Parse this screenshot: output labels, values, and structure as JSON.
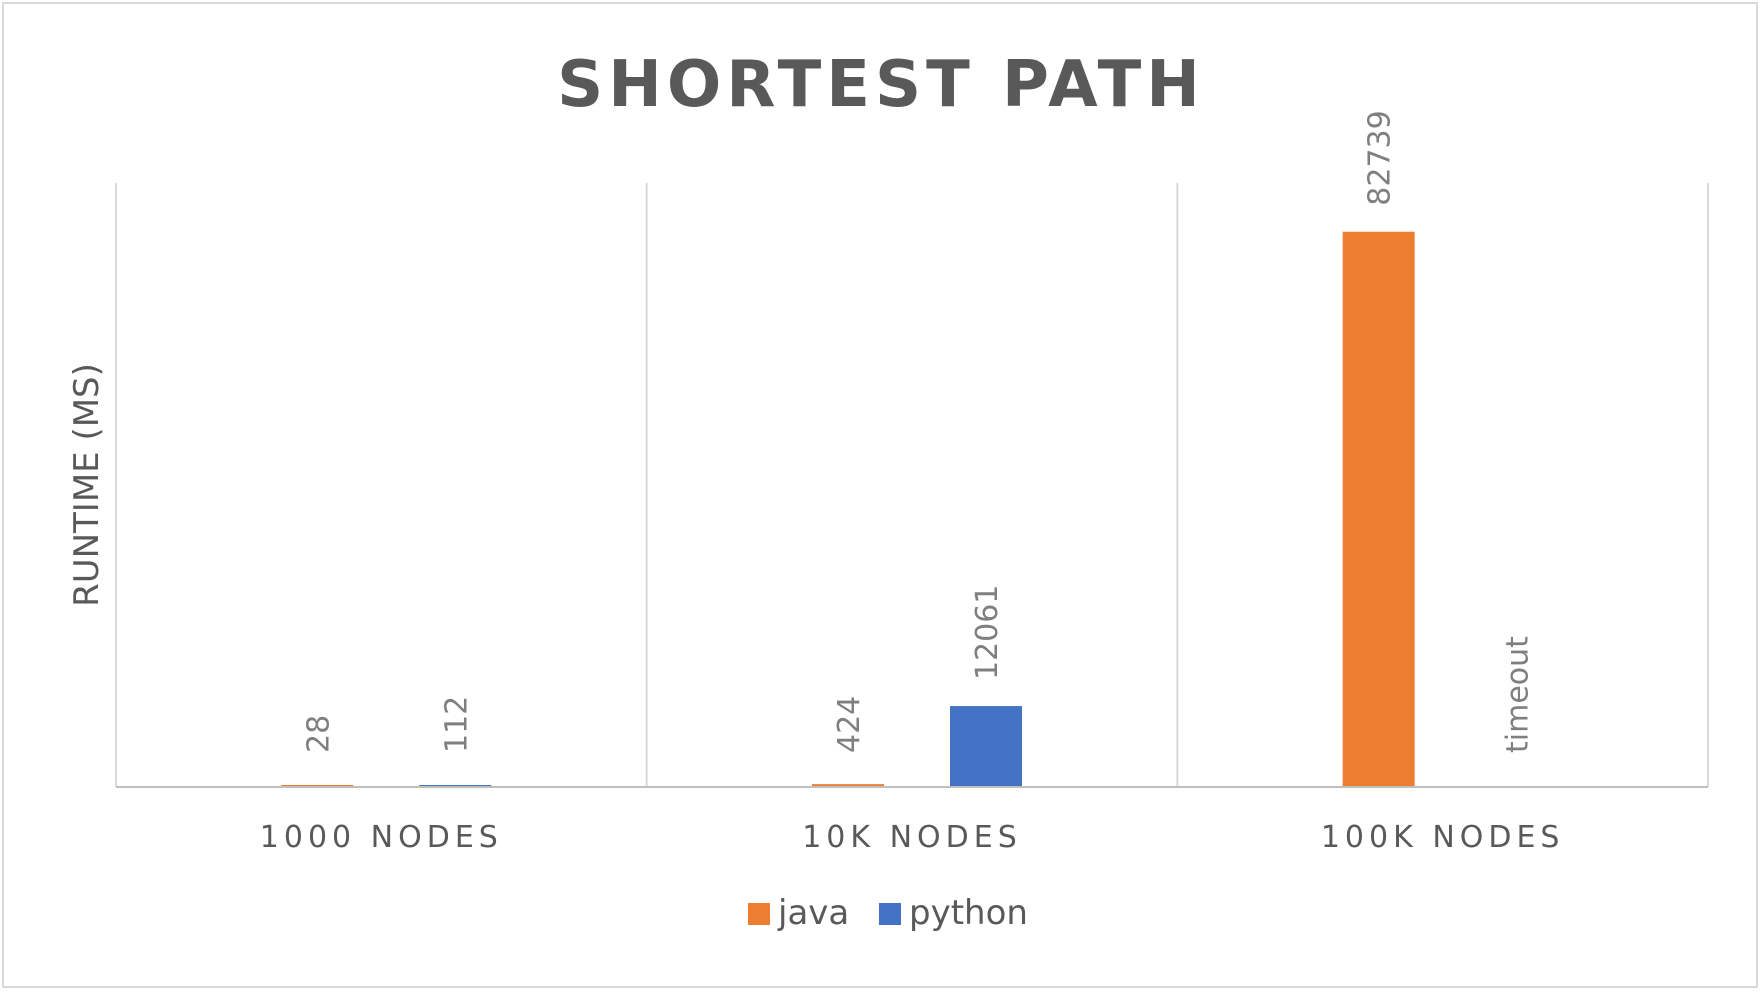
{
  "chart_data": {
    "type": "bar",
    "title": "SHORTEST PATH",
    "ylabel": "RUNTIME (MS)",
    "xlabel": "",
    "categories": [
      "1000 NODES",
      "10K NODES",
      "100K NODES"
    ],
    "series": [
      {
        "name": "java",
        "color": "#ed7d31",
        "values": [
          28,
          424,
          82739
        ],
        "labels": [
          "28",
          "424",
          "82739"
        ]
      },
      {
        "name": "python",
        "color": "#4472c4",
        "values": [
          112,
          12061,
          null
        ],
        "labels": [
          "112",
          "12061",
          "timeout"
        ]
      }
    ],
    "ylim": [
      0,
      90000
    ],
    "grid": "vertical category separators",
    "legend": "bottom-center"
  }
}
